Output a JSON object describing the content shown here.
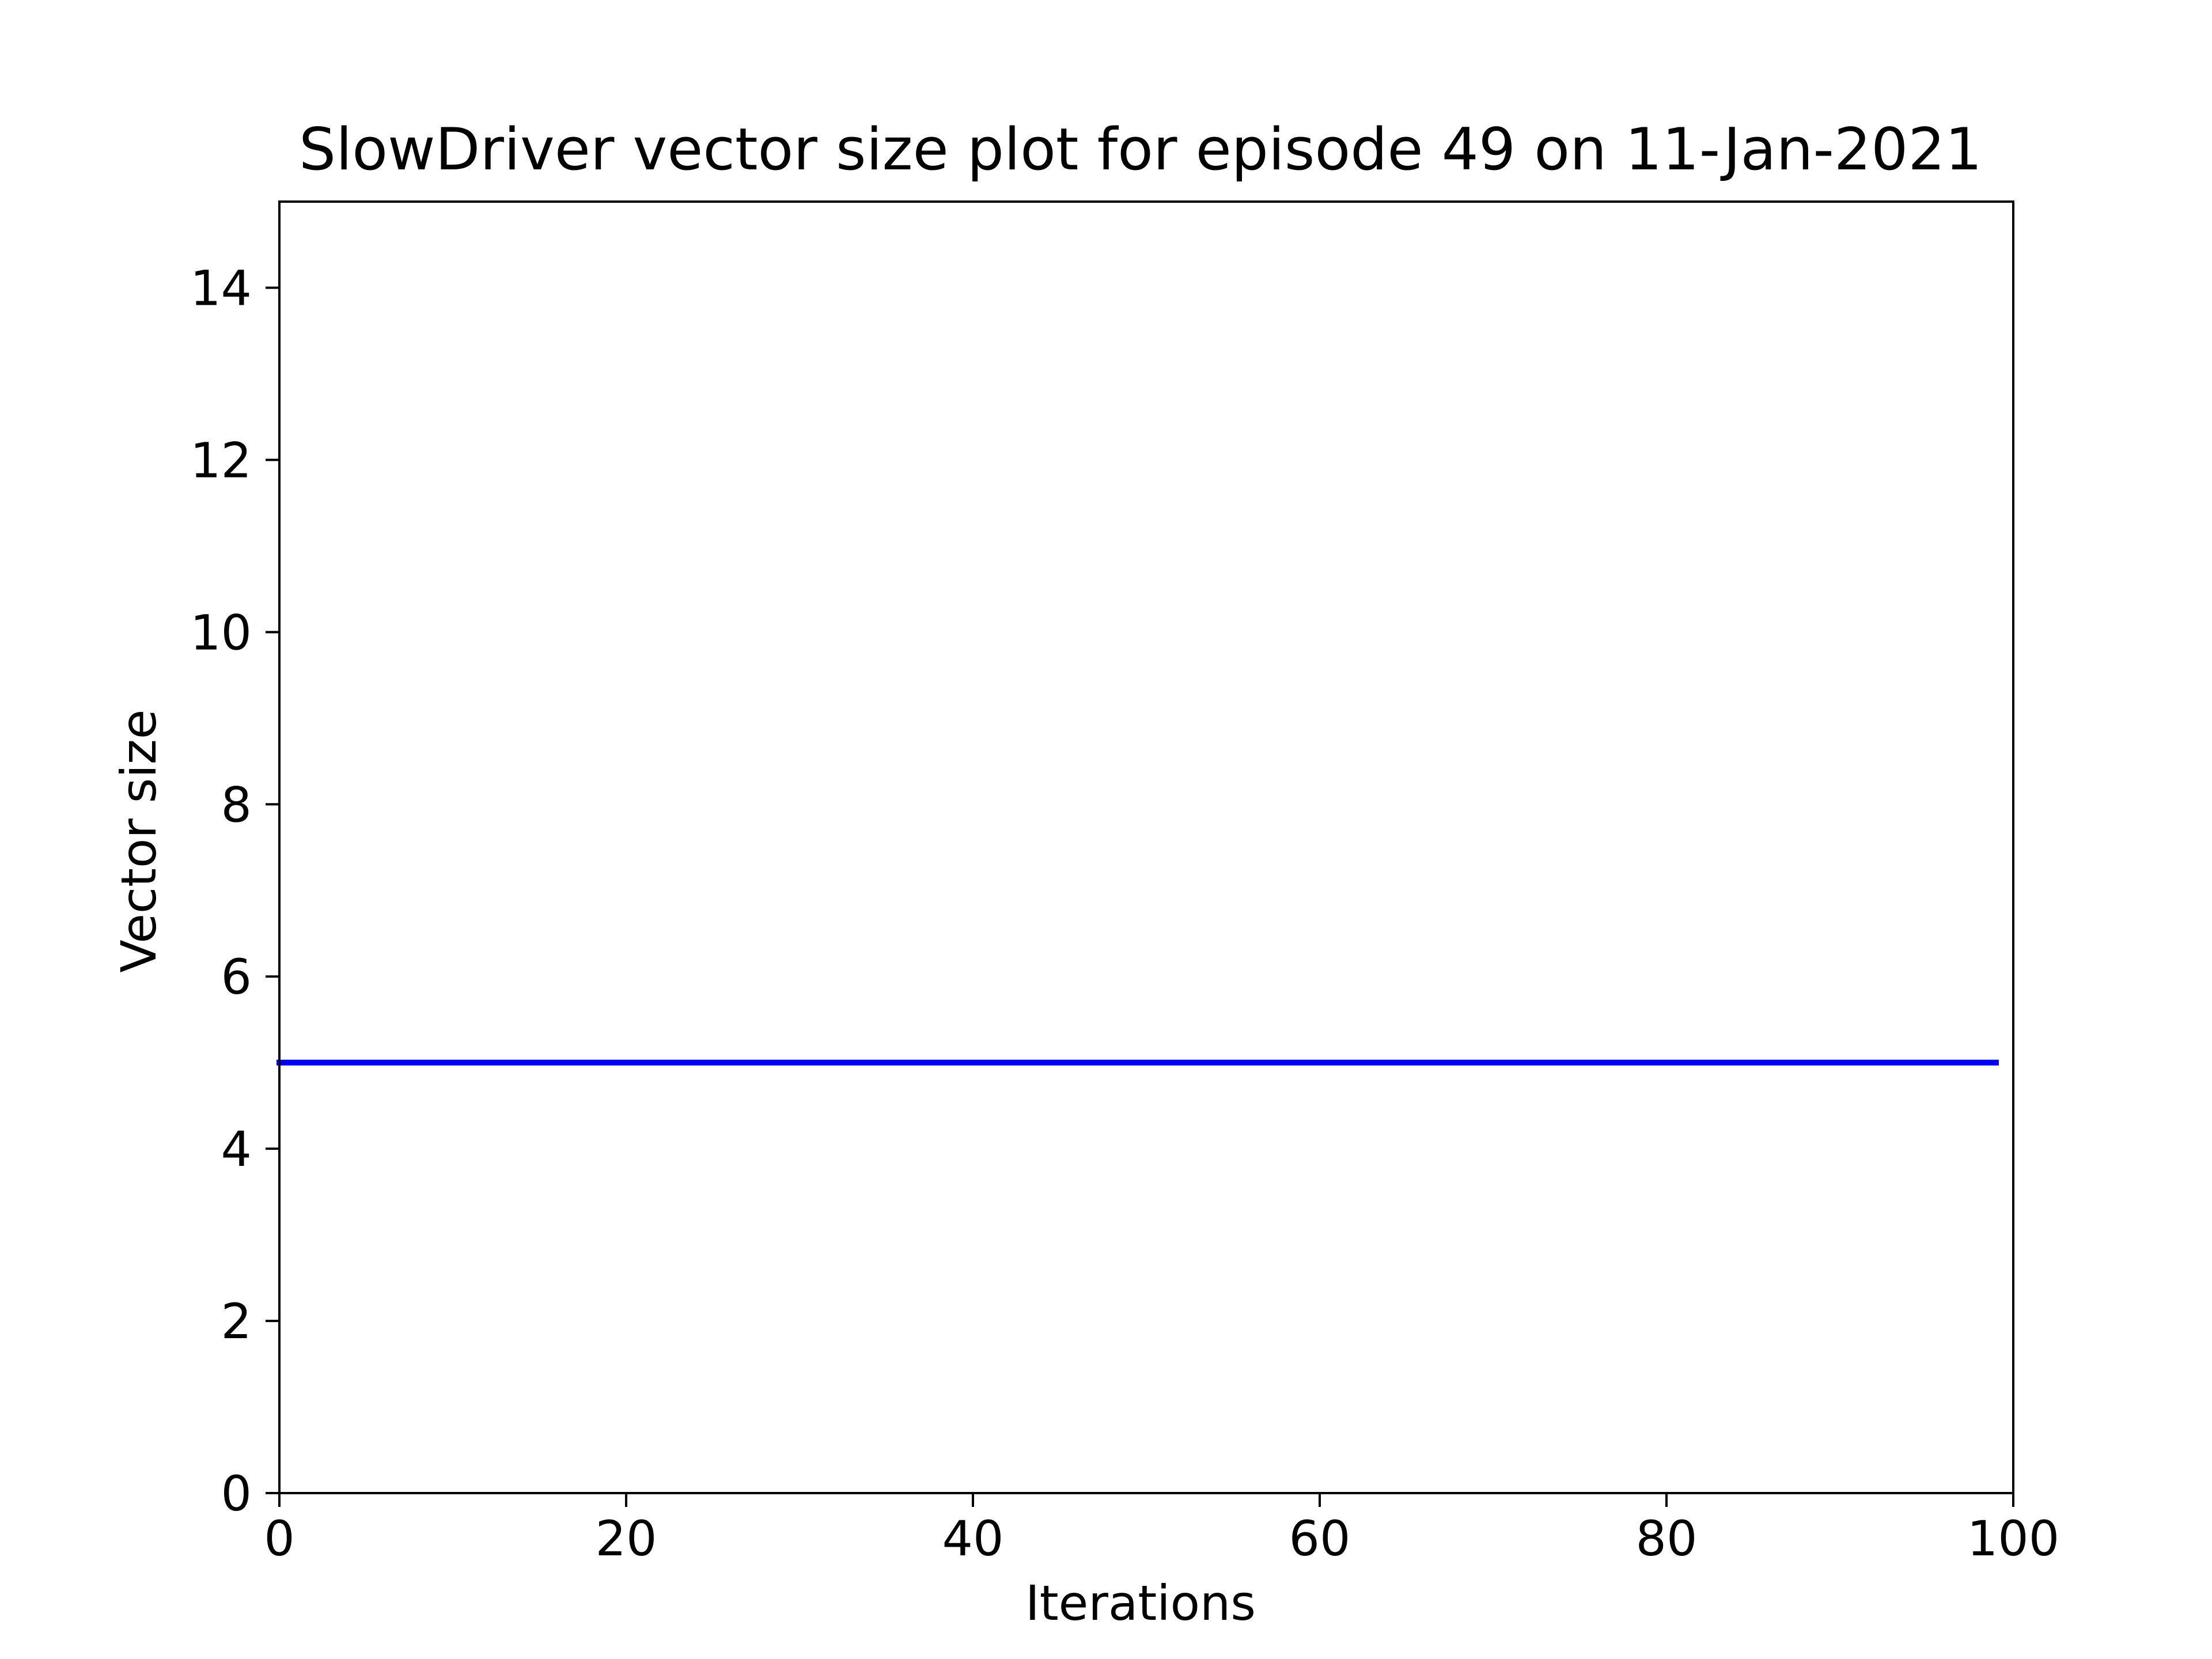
{
  "chart_data": {
    "type": "line",
    "title": "SlowDriver vector size plot for episode 49 on 11-Jan-2021",
    "xlabel": "Iterations",
    "ylabel": "Vector size",
    "xlim": [
      0,
      100
    ],
    "ylim": [
      0,
      15
    ],
    "xticks": [
      "0",
      "20",
      "40",
      "60",
      "80",
      "100"
    ],
    "yticks": [
      "0",
      "2",
      "4",
      "6",
      "8",
      "10",
      "12",
      "14"
    ],
    "grid": false,
    "legend": "none",
    "series": [
      {
        "color": "#0000ff",
        "x": [
          0,
          99
        ],
        "y": [
          5,
          5
        ]
      }
    ]
  }
}
